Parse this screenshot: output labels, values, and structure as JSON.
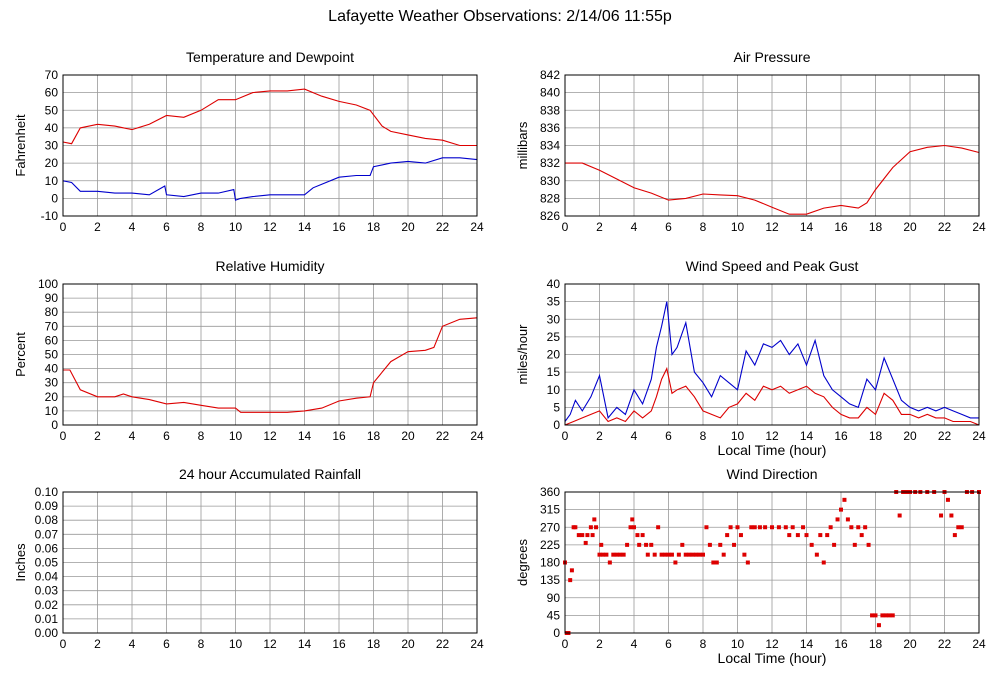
{
  "page": {
    "title": "Lafayette Weather Observations: 2/14/06 11:55p"
  },
  "colors": {
    "red": "#dd0000",
    "blue": "#0000cc",
    "grid": "#999999",
    "frame": "#000000"
  },
  "chart_data": [
    {
      "id": "temp",
      "type": "line",
      "title": "Temperature and Dewpoint",
      "xlabel": "",
      "ylabel": "Fahrenheit",
      "xlim": [
        0,
        24
      ],
      "ylim": [
        -10,
        70
      ],
      "xticks": [
        0,
        2,
        4,
        6,
        8,
        10,
        12,
        14,
        16,
        18,
        20,
        22,
        24
      ],
      "yticks": [
        -10,
        0,
        10,
        20,
        30,
        40,
        50,
        60,
        70
      ],
      "grid": true,
      "series": [
        {
          "color": "#dd0000",
          "x": [
            0,
            0.5,
            1,
            2,
            3,
            4,
            5,
            6,
            7,
            8,
            9,
            10,
            11,
            12,
            13,
            14,
            15,
            16,
            17,
            17.8,
            18.5,
            19,
            20,
            21,
            22,
            23,
            24
          ],
          "y": [
            32,
            31,
            40,
            42,
            41,
            39,
            42,
            47,
            46,
            50,
            56,
            56,
            60,
            61,
            61,
            62,
            58,
            55,
            53,
            50,
            41,
            38,
            36,
            34,
            33,
            30,
            30
          ]
        },
        {
          "color": "#0000cc",
          "x": [
            0,
            0.5,
            1,
            2,
            3,
            4,
            5,
            5.9,
            6,
            7,
            8,
            9,
            9.9,
            10,
            10.3,
            11,
            12,
            13,
            14,
            14.5,
            15,
            16,
            17,
            17.8,
            18,
            19,
            20,
            21,
            22,
            23,
            24
          ],
          "y": [
            10,
            9,
            4,
            4,
            3,
            3,
            2,
            7,
            2,
            1,
            3,
            3,
            5,
            -1,
            0,
            1,
            2,
            2,
            2,
            6,
            8,
            12,
            13,
            13,
            18,
            20,
            21,
            20,
            23,
            23,
            22
          ]
        }
      ]
    },
    {
      "id": "pressure",
      "type": "line",
      "title": "Air Pressure",
      "xlabel": "",
      "ylabel": "millibars",
      "xlim": [
        0,
        24
      ],
      "ylim": [
        826,
        842
      ],
      "xticks": [
        0,
        2,
        4,
        6,
        8,
        10,
        12,
        14,
        16,
        18,
        20,
        22,
        24
      ],
      "yticks": [
        826,
        828,
        830,
        832,
        834,
        836,
        838,
        840,
        842
      ],
      "grid": true,
      "series": [
        {
          "color": "#dd0000",
          "x": [
            0,
            1,
            2,
            3,
            4,
            5,
            6,
            7,
            8,
            9,
            10,
            11,
            12,
            13,
            14,
            15,
            16,
            17,
            17.5,
            18,
            19,
            20,
            21,
            22,
            23,
            24
          ],
          "y": [
            832,
            832,
            831.2,
            830.2,
            829.2,
            828.6,
            827.8,
            828,
            828.5,
            828.4,
            828.3,
            827.8,
            827,
            826.2,
            826.2,
            826.9,
            827.2,
            826.9,
            827.5,
            829,
            831.5,
            833.3,
            833.8,
            834,
            833.7,
            833.2
          ]
        }
      ]
    },
    {
      "id": "humidity",
      "type": "line",
      "title": "Relative Humidity",
      "xlabel": "",
      "ylabel": "Percent",
      "xlim": [
        0,
        24
      ],
      "ylim": [
        0,
        100
      ],
      "xticks": [
        0,
        2,
        4,
        6,
        8,
        10,
        12,
        14,
        16,
        18,
        20,
        22,
        24
      ],
      "yticks": [
        0,
        10,
        20,
        30,
        40,
        50,
        60,
        70,
        80,
        90,
        100
      ],
      "grid": true,
      "series": [
        {
          "color": "#dd0000",
          "x": [
            0,
            0.4,
            1,
            2,
            3,
            3.5,
            4,
            5,
            6,
            7,
            8,
            9,
            10,
            10.3,
            11,
            12,
            13,
            14,
            15,
            16,
            17,
            17.8,
            18,
            19,
            20,
            21,
            21.5,
            22,
            23,
            24
          ],
          "y": [
            39,
            39,
            25,
            20,
            20,
            22,
            20,
            18,
            15,
            16,
            14,
            12,
            12,
            9,
            9,
            9,
            9,
            10,
            12,
            17,
            19,
            20,
            30,
            45,
            52,
            53,
            55,
            70,
            75,
            76
          ]
        }
      ]
    },
    {
      "id": "wind",
      "type": "line",
      "title": "Wind Speed and Peak Gust",
      "xlabel": "Local Time (hour)",
      "ylabel": "miles/hour",
      "xlim": [
        0,
        24
      ],
      "ylim": [
        0,
        40
      ],
      "xticks": [
        0,
        2,
        4,
        6,
        8,
        10,
        12,
        14,
        16,
        18,
        20,
        22,
        24
      ],
      "yticks": [
        0,
        5,
        10,
        15,
        20,
        25,
        30,
        35,
        40
      ],
      "grid": true,
      "series": [
        {
          "color": "#0000cc",
          "x": [
            0,
            0.3,
            0.6,
            1,
            1.5,
            2,
            2.5,
            3,
            3.5,
            4,
            4.5,
            5,
            5.3,
            5.6,
            5.9,
            6.2,
            6.5,
            7,
            7.5,
            8,
            8.5,
            9,
            9.5,
            10,
            10.5,
            11,
            11.5,
            12,
            12.5,
            13,
            13.5,
            14,
            14.5,
            15,
            15.5,
            16,
            16.5,
            17,
            17.5,
            18,
            18.5,
            19,
            19.5,
            20,
            20.5,
            21,
            21.5,
            22,
            22.5,
            23,
            23.5,
            24
          ],
          "y": [
            1,
            3,
            7,
            4,
            8,
            14,
            2,
            5,
            3,
            10,
            6,
            13,
            22,
            28,
            35,
            20,
            22,
            29,
            15,
            12,
            8,
            14,
            12,
            10,
            21,
            17,
            23,
            22,
            24,
            20,
            23,
            17,
            24,
            14,
            10,
            8,
            6,
            5,
            13,
            10,
            19,
            13,
            7,
            5,
            4,
            5,
            4,
            5,
            4,
            3,
            2,
            2
          ]
        },
        {
          "color": "#dd0000",
          "x": [
            0,
            0.5,
            1,
            1.5,
            2,
            2.5,
            3,
            3.5,
            4,
            4.5,
            5,
            5.3,
            5.6,
            5.9,
            6.2,
            6.5,
            7,
            7.5,
            8,
            8.5,
            9,
            9.5,
            10,
            10.5,
            11,
            11.5,
            12,
            12.5,
            13,
            13.5,
            14,
            14.5,
            15,
            15.5,
            16,
            16.5,
            17,
            17.5,
            18,
            18.5,
            19,
            19.5,
            20,
            20.5,
            21,
            21.5,
            22,
            22.5,
            23,
            23.5,
            24
          ],
          "y": [
            0,
            1,
            2,
            3,
            4,
            1,
            2,
            1,
            4,
            2,
            4,
            8,
            13,
            16,
            9,
            10,
            11,
            8,
            4,
            3,
            2,
            5,
            6,
            9,
            7,
            11,
            10,
            11,
            9,
            10,
            11,
            9,
            8,
            5,
            3,
            2,
            2,
            5,
            3,
            9,
            7,
            3,
            3,
            2,
            3,
            2,
            2,
            1,
            1,
            1,
            0
          ]
        }
      ]
    },
    {
      "id": "rain",
      "type": "line",
      "title": "24 hour Accumulated Rainfall",
      "xlabel": "",
      "ylabel": "Inches",
      "xlim": [
        0,
        24
      ],
      "ylim": [
        0,
        0.1
      ],
      "xticks": [
        0,
        2,
        4,
        6,
        8,
        10,
        12,
        14,
        16,
        18,
        20,
        22,
        24
      ],
      "yticks": [
        0,
        0.01,
        0.02,
        0.03,
        0.04,
        0.05,
        0.06,
        0.07,
        0.08,
        0.09,
        0.1
      ],
      "ytick_labels": [
        "0.00",
        "0.01",
        "0.02",
        "0.03",
        "0.04",
        "0.05",
        "0.06",
        "0.07",
        "0.08",
        "0.09",
        "0.10"
      ],
      "grid": true,
      "series": [
        {
          "color": "#dd0000",
          "x": [
            0,
            24
          ],
          "y": [
            0,
            0
          ]
        }
      ]
    },
    {
      "id": "direction",
      "type": "scatter",
      "title": "Wind Direction",
      "xlabel": "Local Time (hour)",
      "ylabel": "degrees",
      "xlim": [
        0,
        24
      ],
      "ylim": [
        0,
        360
      ],
      "xticks": [
        0,
        2,
        4,
        6,
        8,
        10,
        12,
        14,
        16,
        18,
        20,
        22,
        24
      ],
      "yticks": [
        0,
        45,
        90,
        135,
        180,
        225,
        270,
        315,
        360
      ],
      "grid": true,
      "series": [
        {
          "color": "#dd0000",
          "points": [
            [
              0,
              180
            ],
            [
              0.1,
              0
            ],
            [
              0.2,
              0
            ],
            [
              0.3,
              135
            ],
            [
              0.4,
              160
            ],
            [
              0.5,
              270
            ],
            [
              0.6,
              270
            ],
            [
              0.8,
              250
            ],
            [
              1.0,
              250
            ],
            [
              1.2,
              230
            ],
            [
              1.3,
              250
            ],
            [
              1.5,
              270
            ],
            [
              1.6,
              250
            ],
            [
              1.7,
              290
            ],
            [
              1.8,
              270
            ],
            [
              2.0,
              200
            ],
            [
              2.1,
              225
            ],
            [
              2.2,
              200
            ],
            [
              2.4,
              200
            ],
            [
              2.6,
              180
            ],
            [
              2.8,
              200
            ],
            [
              3.0,
              200
            ],
            [
              3.2,
              200
            ],
            [
              3.4,
              200
            ],
            [
              3.6,
              225
            ],
            [
              3.8,
              270
            ],
            [
              3.9,
              290
            ],
            [
              4.0,
              270
            ],
            [
              4.2,
              250
            ],
            [
              4.3,
              225
            ],
            [
              4.5,
              250
            ],
            [
              4.7,
              225
            ],
            [
              4.8,
              200
            ],
            [
              5.0,
              225
            ],
            [
              5.2,
              200
            ],
            [
              5.4,
              270
            ],
            [
              5.6,
              200
            ],
            [
              5.8,
              200
            ],
            [
              6.0,
              200
            ],
            [
              6.2,
              200
            ],
            [
              6.4,
              180
            ],
            [
              6.6,
              200
            ],
            [
              6.8,
              225
            ],
            [
              7.0,
              200
            ],
            [
              7.2,
              200
            ],
            [
              7.4,
              200
            ],
            [
              7.6,
              200
            ],
            [
              7.8,
              200
            ],
            [
              8.0,
              200
            ],
            [
              8.2,
              270
            ],
            [
              8.4,
              225
            ],
            [
              8.6,
              180
            ],
            [
              8.8,
              180
            ],
            [
              9.0,
              225
            ],
            [
              9.2,
              200
            ],
            [
              9.4,
              250
            ],
            [
              9.6,
              270
            ],
            [
              9.8,
              225
            ],
            [
              10.0,
              270
            ],
            [
              10.2,
              250
            ],
            [
              10.4,
              200
            ],
            [
              10.6,
              180
            ],
            [
              10.8,
              270
            ],
            [
              11.0,
              270
            ],
            [
              11.3,
              270
            ],
            [
              11.6,
              270
            ],
            [
              12.0,
              270
            ],
            [
              12.4,
              270
            ],
            [
              12.8,
              270
            ],
            [
              13.0,
              250
            ],
            [
              13.2,
              270
            ],
            [
              13.5,
              250
            ],
            [
              13.8,
              270
            ],
            [
              14.0,
              250
            ],
            [
              14.3,
              225
            ],
            [
              14.6,
              200
            ],
            [
              14.8,
              250
            ],
            [
              15.0,
              180
            ],
            [
              15.2,
              250
            ],
            [
              15.4,
              270
            ],
            [
              15.6,
              225
            ],
            [
              15.8,
              290
            ],
            [
              16.0,
              315
            ],
            [
              16.2,
              340
            ],
            [
              16.4,
              290
            ],
            [
              16.6,
              270
            ],
            [
              16.8,
              225
            ],
            [
              17.0,
              270
            ],
            [
              17.2,
              250
            ],
            [
              17.4,
              270
            ],
            [
              17.6,
              225
            ],
            [
              17.8,
              45
            ],
            [
              18.0,
              45
            ],
            [
              18.2,
              20
            ],
            [
              18.4,
              45
            ],
            [
              18.6,
              45
            ],
            [
              18.8,
              45
            ],
            [
              19.0,
              45
            ],
            [
              19.2,
              360
            ],
            [
              19.4,
              300
            ],
            [
              19.6,
              360
            ],
            [
              19.8,
              360
            ],
            [
              20.0,
              360
            ],
            [
              20.3,
              360
            ],
            [
              20.6,
              360
            ],
            [
              21.0,
              360
            ],
            [
              21.4,
              360
            ],
            [
              21.8,
              300
            ],
            [
              22.0,
              360
            ],
            [
              22.2,
              340
            ],
            [
              22.4,
              300
            ],
            [
              22.6,
              250
            ],
            [
              22.8,
              270
            ],
            [
              23.0,
              270
            ],
            [
              23.3,
              360
            ],
            [
              23.6,
              360
            ],
            [
              24.0,
              360
            ]
          ]
        }
      ]
    }
  ]
}
